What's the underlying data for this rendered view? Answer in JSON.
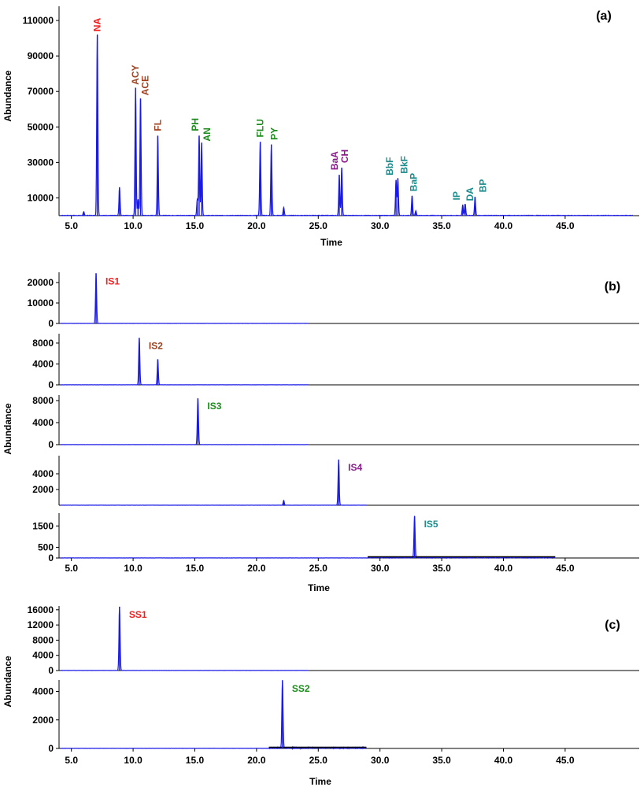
{
  "colors": {
    "trace": "#1a1ae6",
    "red": "#ff1a1a",
    "brown": "#a0401e",
    "green": "#1a8c1a",
    "purple": "#8c1a8c",
    "teal": "#1a8c8c",
    "axis": "#000000"
  },
  "time_axis": {
    "label": "Time",
    "range": [
      4,
      51
    ],
    "ticks": [
      5,
      10,
      15,
      20,
      25,
      30,
      35,
      40,
      45
    ],
    "tick_labels": [
      "5.0",
      "10.0",
      "15.0",
      "20.0",
      "25.0",
      "30.0",
      "35.0",
      "40.0",
      "45.0"
    ]
  },
  "chart_data": [
    {
      "type": "line",
      "panel": "(a)",
      "ylabel": "Abundance",
      "xlabel": "Time",
      "ylim": [
        0,
        118000
      ],
      "y_ticks": [
        10000,
        30000,
        50000,
        70000,
        90000,
        110000
      ],
      "y_tick_labels": [
        "10000",
        "30000",
        "50000",
        "70000",
        "90000",
        "110000"
      ],
      "baseline_end": 50.5,
      "peaks": [
        {
          "t": 6.0,
          "h": 2000
        },
        {
          "t": 7.1,
          "h": 102000,
          "label": "NA",
          "color": "red"
        },
        {
          "t": 8.9,
          "h": 16000
        },
        {
          "t": 10.2,
          "h": 72000,
          "label": "ACY",
          "color": "brown"
        },
        {
          "t": 10.4,
          "h": 9000
        },
        {
          "t": 10.6,
          "h": 66000,
          "label": "ACE",
          "color": "brown"
        },
        {
          "t": 12.0,
          "h": 45000,
          "label": "FL",
          "color": "brown"
        },
        {
          "t": 15.2,
          "h": 9000
        },
        {
          "t": 15.35,
          "h": 45000,
          "label": "PH",
          "color": "green"
        },
        {
          "t": 15.55,
          "h": 41000,
          "label": "AN",
          "color": "green"
        },
        {
          "t": 20.3,
          "h": 41500,
          "label": "FLU",
          "color": "green"
        },
        {
          "t": 21.2,
          "h": 40000,
          "label": "PY",
          "color": "green"
        },
        {
          "t": 22.2,
          "h": 4500
        },
        {
          "t": 26.7,
          "h": 23000,
          "label": "BaA",
          "color": "purple"
        },
        {
          "t": 26.9,
          "h": 27000,
          "label": "CH",
          "color": "purple"
        },
        {
          "t": 31.3,
          "h": 20000,
          "label": "BbF",
          "color": "teal"
        },
        {
          "t": 31.45,
          "h": 21000,
          "label": "BkF",
          "color": "teal"
        },
        {
          "t": 32.6,
          "h": 11000,
          "label": "BaP",
          "color": "teal"
        },
        {
          "t": 32.9,
          "h": 2500
        },
        {
          "t": 36.7,
          "h": 6000,
          "label": "IP",
          "color": "teal"
        },
        {
          "t": 36.9,
          "h": 6500,
          "label": "DA",
          "color": "teal"
        },
        {
          "t": 37.7,
          "h": 10500,
          "label": "BP",
          "color": "teal"
        }
      ]
    },
    {
      "type": "line",
      "panel": "(b)",
      "sub": "1",
      "ylim": [
        0,
        25000
      ],
      "y_ticks": [
        0,
        10000,
        20000
      ],
      "y_tick_labels": [
        "0",
        "10000",
        "20000"
      ],
      "baseline_end": 24.2,
      "peaks": [
        {
          "t": 7.0,
          "h": 24500,
          "label": "IS1",
          "color": "red"
        }
      ]
    },
    {
      "type": "line",
      "panel": "(b)",
      "sub": "2",
      "ylim": [
        0,
        9800
      ],
      "y_ticks": [
        0,
        4000,
        8000
      ],
      "y_tick_labels": [
        "0",
        "4000",
        "8000"
      ],
      "baseline_end": 24.2,
      "peaks": [
        {
          "t": 10.5,
          "h": 9000,
          "label": "IS2",
          "color": "brown"
        },
        {
          "t": 12.0,
          "h": 4900
        }
      ]
    },
    {
      "type": "line",
      "panel": "(b)",
      "sub": "3",
      "ylim": [
        0,
        9000
      ],
      "y_ticks": [
        0,
        4000,
        8000
      ],
      "y_tick_labels": [
        "0",
        "4000",
        "8000"
      ],
      "baseline_end": 24.2,
      "peaks": [
        {
          "t": 15.25,
          "h": 8400,
          "label": "IS3",
          "color": "green"
        }
      ]
    },
    {
      "type": "line",
      "panel": "(b)",
      "sub": "4",
      "ylim": [
        0,
        6300
      ],
      "y_ticks": [
        2000,
        4000
      ],
      "y_tick_labels": [
        "2000",
        "4000"
      ],
      "baseline_end": 28.9,
      "peaks": [
        {
          "t": 22.2,
          "h": 600
        },
        {
          "t": 26.65,
          "h": 5800,
          "label": "IS4",
          "color": "purple"
        }
      ]
    },
    {
      "type": "line",
      "panel": "(b)",
      "sub": "5",
      "ylim": [
        0,
        2100
      ],
      "y_ticks": [
        0,
        500,
        1500
      ],
      "y_tick_labels": [
        "0",
        "500",
        "1500"
      ],
      "baseline_end": 44.2,
      "noise_from": 29.0,
      "peaks": [
        {
          "t": 32.8,
          "h": 1950,
          "label": "IS5",
          "color": "teal"
        }
      ]
    },
    {
      "type": "line",
      "panel": "(c)",
      "sub": "1",
      "ylim": [
        0,
        17000
      ],
      "y_ticks": [
        0,
        4000,
        8000,
        12000,
        16000
      ],
      "y_tick_labels": [
        "0",
        "4000",
        "8000",
        "12000",
        "16000"
      ],
      "baseline_end": 24.2,
      "peaks": [
        {
          "t": 8.9,
          "h": 16800,
          "label": "SS1",
          "color": "red"
        }
      ]
    },
    {
      "type": "line",
      "panel": "(c)",
      "sub": "2",
      "ylim": [
        0,
        4800
      ],
      "y_ticks": [
        0,
        2000,
        4000
      ],
      "y_tick_labels": [
        "0",
        "2000",
        "4000"
      ],
      "baseline_end": 28.9,
      "noise_from": 21.0,
      "peaks": [
        {
          "t": 22.1,
          "h": 4750,
          "label": "SS2",
          "color": "green"
        }
      ]
    }
  ],
  "panel_labels": {
    "a": "(a)",
    "b": "(b)",
    "c": "(c)"
  },
  "ylabel": "Abundance"
}
